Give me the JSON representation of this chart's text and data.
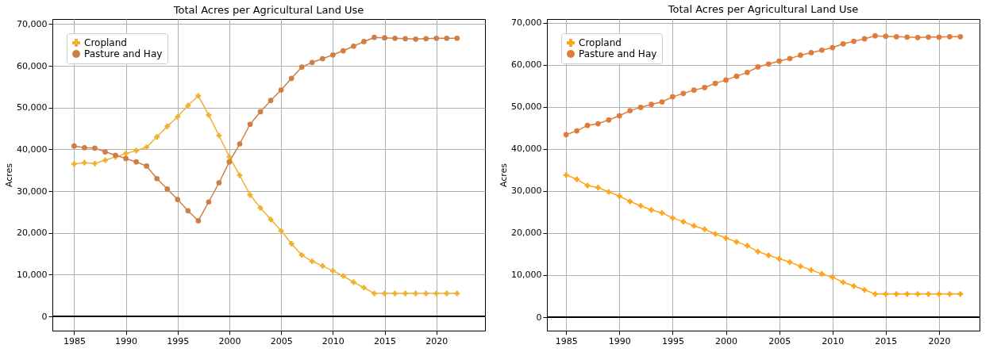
{
  "chart_data": [
    {
      "type": "line",
      "title": "Total Acres per Agricultural Land Use",
      "ylabel": "Acres",
      "x": [
        1985,
        1986,
        1987,
        1988,
        1989,
        1990,
        1991,
        1992,
        1993,
        1994,
        1995,
        1996,
        1997,
        1998,
        1999,
        2000,
        2001,
        2002,
        2003,
        2004,
        2005,
        2006,
        2007,
        2008,
        2009,
        2010,
        2011,
        2012,
        2013,
        2014,
        2015,
        2016,
        2017,
        2018,
        2019,
        2020,
        2021,
        2022
      ],
      "series": [
        {
          "name": "Cropland",
          "color": "#f0b030",
          "marker": "cross",
          "values": [
            36500,
            36800,
            36600,
            37400,
            38200,
            39000,
            39700,
            40500,
            43000,
            45500,
            47800,
            50500,
            52800,
            48200,
            43300,
            38200,
            33800,
            29100,
            26000,
            23200,
            20500,
            17400,
            14700,
            13200,
            12100,
            10900,
            9700,
            8200,
            6900,
            5500,
            5500,
            5500,
            5500,
            5500,
            5500,
            5500,
            5500,
            5500
          ]
        },
        {
          "name": "Pasture and Hay",
          "color": "#cd7f45",
          "marker": "circle",
          "values": [
            40800,
            40400,
            40300,
            39400,
            38600,
            37800,
            37000,
            36000,
            33000,
            30500,
            28000,
            25300,
            22900,
            27400,
            32000,
            37000,
            41300,
            46000,
            49000,
            51700,
            54200,
            57000,
            59700,
            60800,
            61700,
            62600,
            63600,
            64700,
            65800,
            66800,
            66700,
            66600,
            66500,
            66400,
            66500,
            66600,
            66600,
            66600
          ]
        }
      ],
      "xlim": [
        1982.9,
        2024.7
      ],
      "ylim": [
        -3400,
        71200
      ],
      "xticks": [
        1985,
        1990,
        1995,
        2000,
        2005,
        2010,
        2015,
        2020
      ],
      "yticks": [
        {
          "value": 0,
          "label": "0"
        },
        {
          "value": 10000,
          "label": "10,000"
        },
        {
          "value": 20000,
          "label": "20,000"
        },
        {
          "value": 30000,
          "label": "30,000"
        },
        {
          "value": 40000,
          "label": "40,000"
        },
        {
          "value": 50000,
          "label": "50,000"
        },
        {
          "value": 60000,
          "label": "60,000"
        },
        {
          "value": 70000,
          "label": "70,000"
        }
      ],
      "grid": true,
      "legend": "top left",
      "line_style": "solid",
      "ref_lines": [
        {
          "axis": "y",
          "value": 0,
          "color": "#000000"
        }
      ]
    },
    {
      "type": "line",
      "title": "Total Acres per Agricultural Land Use",
      "ylabel": "Acres",
      "x": [
        1985,
        1986,
        1987,
        1988,
        1989,
        1990,
        1991,
        1992,
        1993,
        1994,
        1995,
        1996,
        1997,
        1998,
        1999,
        2000,
        2001,
        2002,
        2003,
        2004,
        2005,
        2006,
        2007,
        2008,
        2009,
        2010,
        2011,
        2012,
        2013,
        2014,
        2015,
        2016,
        2017,
        2018,
        2019,
        2020,
        2021,
        2022
      ],
      "series": [
        {
          "name": "Cropland",
          "color": "#ffa31a",
          "marker": "cross",
          "values": [
            33800,
            32800,
            31300,
            30800,
            29800,
            28800,
            27500,
            26500,
            25500,
            24800,
            23600,
            22700,
            21700,
            20900,
            19800,
            18800,
            17900,
            17000,
            15600,
            14700,
            13900,
            13100,
            12100,
            11200,
            10300,
            9500,
            8300,
            7400,
            6500,
            5500,
            5500,
            5500,
            5500,
            5500,
            5500,
            5500,
            5500,
            5500
          ]
        },
        {
          "name": "Pasture and Hay",
          "color": "#e07b39",
          "marker": "circle",
          "values": [
            43400,
            44300,
            45600,
            46000,
            46900,
            47900,
            49100,
            49900,
            50600,
            51200,
            52400,
            53200,
            54000,
            54600,
            55600,
            56400,
            57300,
            58200,
            59500,
            60200,
            60900,
            61500,
            62300,
            62900,
            63500,
            64100,
            65000,
            65600,
            66200,
            66900,
            66800,
            66700,
            66600,
            66500,
            66600,
            66600,
            66700,
            66700
          ]
        }
      ],
      "xlim": [
        1983.2,
        2023.8
      ],
      "ylim": [
        -3200,
        70900
      ],
      "xticks": [
        1985,
        1990,
        1995,
        2000,
        2005,
        2010,
        2015,
        2020
      ],
      "yticks": [
        {
          "value": 0,
          "label": "0"
        },
        {
          "value": 10000,
          "label": "10,000"
        },
        {
          "value": 20000,
          "label": "20,000"
        },
        {
          "value": 30000,
          "label": "30,000"
        },
        {
          "value": 40000,
          "label": "40,000"
        },
        {
          "value": 50000,
          "label": "50,000"
        },
        {
          "value": 60000,
          "label": "60,000"
        },
        {
          "value": 70000,
          "label": "70,000"
        }
      ],
      "grid": true,
      "legend": "top left",
      "line_style": "solid",
      "ref_lines": [
        {
          "axis": "y",
          "value": 0,
          "color": "#000000"
        }
      ]
    }
  ]
}
